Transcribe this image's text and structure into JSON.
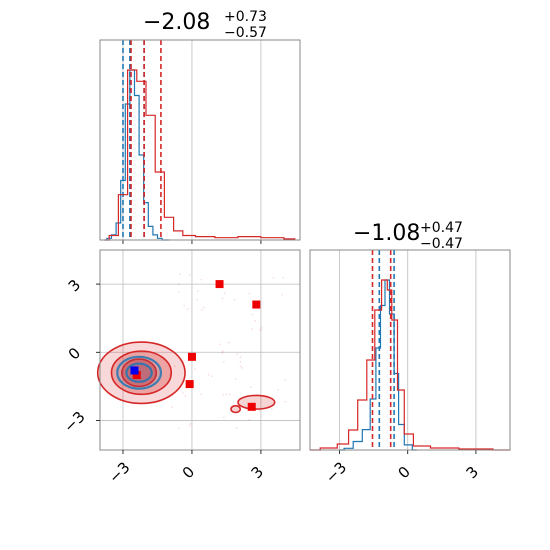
{
  "chart_data": [
    {
      "type": "line",
      "panel": "marginal-param-1",
      "title": {
        "median": "−2.08",
        "plus": "+0.73",
        "minus": "−0.57"
      },
      "xlim": [
        -4,
        4.7
      ],
      "series": [
        {
          "name": "",
          "color": "#1f77b4",
          "x": [
            -3.8,
            -3.6,
            -3.4,
            -3.2,
            -3.0,
            -2.8,
            -2.6,
            -2.4,
            -2.2,
            -2.0,
            -1.8,
            -1.6,
            -1.4,
            -1.2,
            -1.0
          ],
          "values": [
            0,
            0.01,
            0.03,
            0.1,
            0.35,
            0.8,
            1.0,
            0.85,
            0.5,
            0.22,
            0.08,
            0.03,
            0.01,
            0,
            0
          ],
          "quantile_lines": [
            -3.0,
            -2.7,
            -2.08
          ]
        },
        {
          "name": "",
          "color": "#d62728",
          "x": [
            -3.8,
            -3.4,
            -3.0,
            -2.6,
            -2.2,
            -1.8,
            -1.4,
            -1.0,
            -0.6,
            -0.2,
            0.5,
            1.5,
            2.5,
            3.5,
            4.5
          ],
          "values": [
            0,
            0.02,
            0.2,
            0.75,
            0.7,
            0.55,
            0.3,
            0.1,
            0.04,
            0.02,
            0.015,
            0.01,
            0.015,
            0.01,
            0.005
          ],
          "quantile_lines": [
            -2.65,
            -2.08,
            -1.35
          ]
        }
      ]
    },
    {
      "type": "scatter",
      "panel": "joint-2d",
      "xlim": [
        -4,
        4.7
      ],
      "ylim": [
        -4.3,
        4.5
      ],
      "x_ticks": [
        -3,
        0,
        3
      ],
      "y_ticks": [
        -3,
        0,
        3
      ],
      "contours_red": [
        {
          "cx": -2.2,
          "cy": -0.9,
          "rx": 1.9,
          "ry": 1.35,
          "opacity": 0.18
        },
        {
          "cx": -2.2,
          "cy": -0.9,
          "rx": 1.3,
          "ry": 0.95,
          "opacity": 0.3
        },
        {
          "cx": -2.3,
          "cy": -0.9,
          "rx": 0.75,
          "ry": 0.6,
          "opacity": 0.45
        }
      ],
      "contours_red_islands": [
        {
          "cx": 2.8,
          "cy": -2.2,
          "rx": 0.8,
          "ry": 0.3
        },
        {
          "cx": 1.9,
          "cy": -2.5,
          "rx": 0.2,
          "ry": 0.15
        }
      ],
      "contours_blue": [
        {
          "cx": -2.3,
          "cy": -0.9,
          "rx": 0.95,
          "ry": 0.7
        },
        {
          "cx": -2.3,
          "cy": -0.9,
          "rx": 0.55,
          "ry": 0.4
        }
      ],
      "red_markers": [
        {
          "x": 1.2,
          "y": 3.0
        },
        {
          "x": 2.8,
          "y": 2.1
        },
        {
          "x": 0.0,
          "y": -0.2
        },
        {
          "x": -0.1,
          "y": -1.4
        },
        {
          "x": 2.6,
          "y": -2.4
        },
        {
          "x": -2.4,
          "y": -1.0
        }
      ],
      "blue_markers": [
        {
          "x": -2.5,
          "y": -0.8
        }
      ]
    },
    {
      "type": "line",
      "panel": "marginal-param-2",
      "title": {
        "median": "−1.08",
        "plus": "+0.47",
        "minus": "−0.47"
      },
      "xlim": [
        -4.3,
        4.5
      ],
      "x_ticks": [
        -3,
        0,
        3
      ],
      "series": [
        {
          "name": "",
          "color": "#1f77b4",
          "x": [
            -3.0,
            -2.6,
            -2.2,
            -1.8,
            -1.5,
            -1.3,
            -1.1,
            -0.9,
            -0.7,
            -0.5,
            -0.3,
            0,
            0.4
          ],
          "values": [
            0,
            0.01,
            0.05,
            0.12,
            0.3,
            0.6,
            0.85,
            1.0,
            0.8,
            0.45,
            0.15,
            0.03,
            0
          ],
          "quantile_lines": [
            -1.25,
            -0.6
          ]
        },
        {
          "name": "",
          "color": "#d62728",
          "x": [
            -4.3,
            -3.4,
            -2.8,
            -2.4,
            -2.0,
            -1.6,
            -1.3,
            -1.0,
            -0.8,
            -0.6,
            -0.3,
            0,
            0.5,
            1.5,
            3.0,
            4.5
          ],
          "values": [
            0,
            0.01,
            0.03,
            0.1,
            0.25,
            0.45,
            0.7,
            0.85,
            0.8,
            0.65,
            0.3,
            0.08,
            0.02,
            0.01,
            0.005,
            0
          ],
          "quantile_lines": [
            -1.55,
            -0.75
          ]
        }
      ]
    }
  ],
  "colors": {
    "red": "#d62728",
    "blue": "#1f77b4",
    "frame": "#888888",
    "grid": "#bdbdbd"
  }
}
